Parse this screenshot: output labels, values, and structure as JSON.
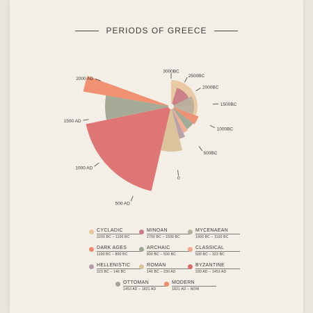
{
  "title": "PERIODS OF GREECE",
  "chart_data": {
    "type": "pie",
    "title": "PERIODS OF GREECE",
    "center_tick": "3000BC",
    "ticks": [
      "2500BC",
      "2000BC",
      "1500BC",
      "1000BC",
      "500BC",
      "0",
      "500 AD",
      "1000 AD",
      "1500 AD",
      "2000 AD"
    ],
    "periods": [
      {
        "name": "CYCLADIC",
        "range": "3200 BC – 1100 BC",
        "start": -3200,
        "end": -1100,
        "color": "#e8c79e"
      },
      {
        "name": "MINOAN",
        "range": "2700 BC – 1500 BC",
        "start": -2700,
        "end": -1500,
        "color": "#c97a88"
      },
      {
        "name": "MYCENAEAN",
        "range": "1900 BC – 1100 BC",
        "start": -1900,
        "end": -1100,
        "color": "#b8b09c"
      },
      {
        "name": "DARK AGES",
        "range": "1100 BC – 800 BC",
        "start": -1100,
        "end": -800,
        "color": "#ee8a6c"
      },
      {
        "name": "ARCHAIC",
        "range": "800 BC – 500 BC",
        "start": -800,
        "end": -500,
        "color": "#9aa58e"
      },
      {
        "name": "CLASSICAL",
        "range": "500 BC – 323 BC",
        "start": -500,
        "end": -323,
        "color": "#f2a88e"
      },
      {
        "name": "HELLENISTIC",
        "range": "323 BC – 146 BC",
        "start": -323,
        "end": -146,
        "color": "#b39aa4"
      },
      {
        "name": "ROMAN",
        "range": "146 BC – 330 AD",
        "start": -146,
        "end": 330,
        "color": "#d9c096"
      },
      {
        "name": "BYZANTINE",
        "range": "330 AD – 1453 AD",
        "start": 330,
        "end": 1453,
        "color": "#dc6b6b"
      },
      {
        "name": "OTTOMAN",
        "range": "1453 AD – 1821 AD",
        "start": 1453,
        "end": 1821,
        "color": "#a0a591"
      },
      {
        "name": "MODERN",
        "range": "1821 AD – NOW",
        "start": 1821,
        "end": 2020,
        "color": "#f08a68"
      }
    ]
  }
}
